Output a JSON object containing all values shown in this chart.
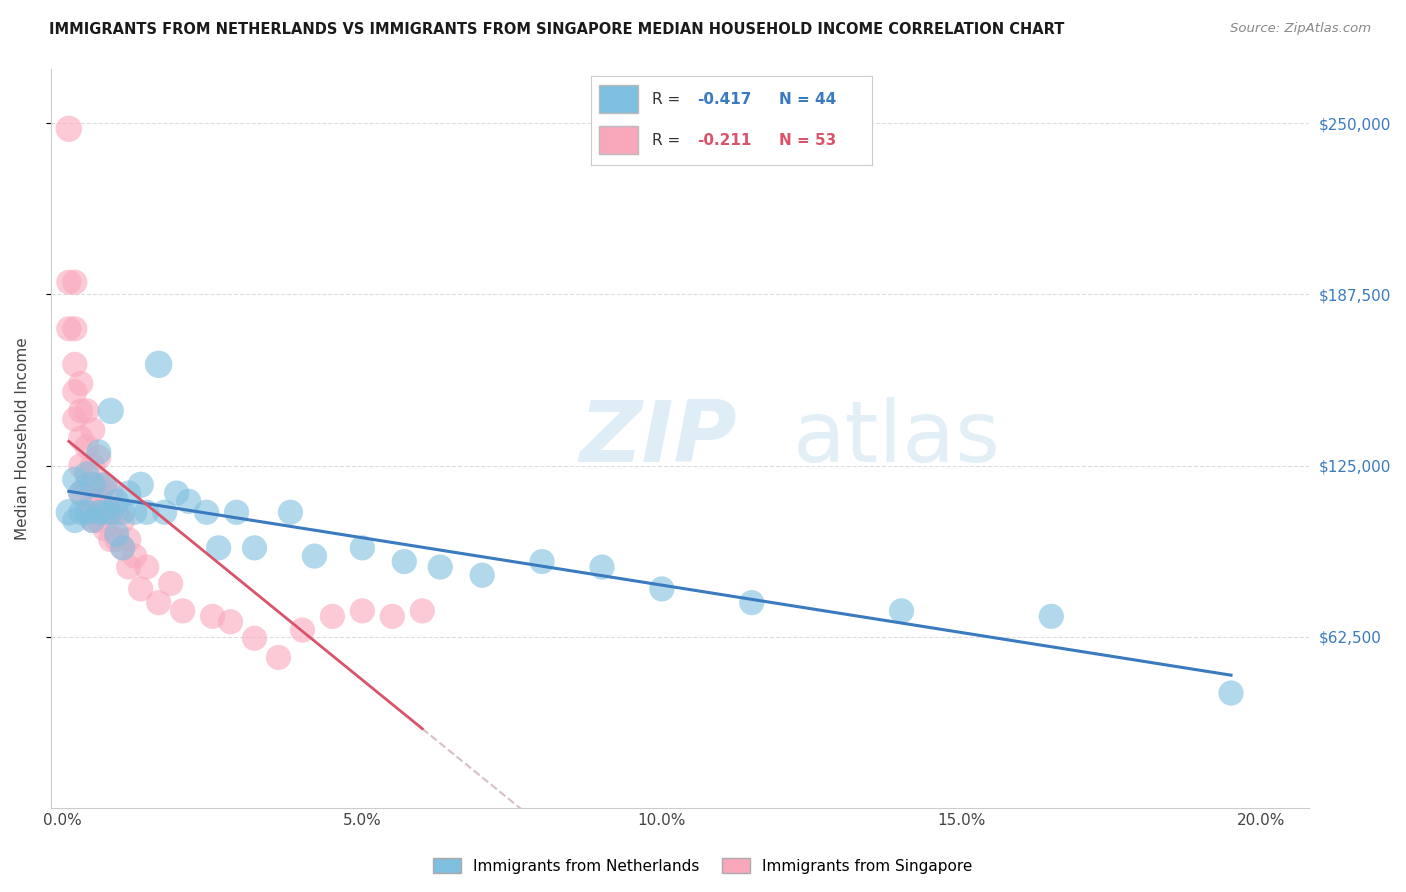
{
  "title": "IMMIGRANTS FROM NETHERLANDS VS IMMIGRANTS FROM SINGAPORE MEDIAN HOUSEHOLD INCOME CORRELATION CHART",
  "source": "Source: ZipAtlas.com",
  "ylabel": "Median Household Income",
  "xlabel_ticks": [
    "0.0%",
    "5.0%",
    "10.0%",
    "15.0%",
    "20.0%"
  ],
  "xlabel_tick_vals": [
    0.0,
    0.05,
    0.1,
    0.15,
    0.2
  ],
  "ytick_labels": [
    "$62,500",
    "$125,000",
    "$187,500",
    "$250,000"
  ],
  "ytick_vals": [
    62500,
    125000,
    187500,
    250000
  ],
  "ylim": [
    0,
    270000
  ],
  "xlim": [
    -0.002,
    0.208
  ],
  "legend_label_blue": "Immigrants from Netherlands",
  "legend_label_pink": "Immigrants from Singapore",
  "color_blue": "#7fbfdf",
  "color_pink": "#f9a8bc",
  "color_blue_line": "#3a7abf",
  "color_pink_line": "#d9536a",
  "color_pink_dashed": "#ccb0b8",
  "watermark_zip": "ZIP",
  "watermark_atlas": "atlas",
  "blue_r": "-0.417",
  "blue_n": "44",
  "pink_r": "-0.211",
  "pink_n": "53",
  "blue_scatter_x": [
    0.001,
    0.002,
    0.002,
    0.003,
    0.003,
    0.004,
    0.004,
    0.005,
    0.005,
    0.006,
    0.006,
    0.007,
    0.007,
    0.008,
    0.008,
    0.009,
    0.009,
    0.01,
    0.01,
    0.011,
    0.012,
    0.013,
    0.014,
    0.016,
    0.017,
    0.019,
    0.021,
    0.024,
    0.026,
    0.029,
    0.032,
    0.038,
    0.042,
    0.05,
    0.057,
    0.063,
    0.07,
    0.08,
    0.09,
    0.1,
    0.115,
    0.14,
    0.165,
    0.195
  ],
  "blue_scatter_y": [
    108000,
    120000,
    105000,
    115000,
    108000,
    122000,
    108000,
    118000,
    105000,
    130000,
    108000,
    118000,
    108000,
    145000,
    108000,
    112000,
    100000,
    108000,
    95000,
    115000,
    108000,
    118000,
    108000,
    162000,
    108000,
    115000,
    112000,
    108000,
    95000,
    108000,
    95000,
    108000,
    92000,
    95000,
    90000,
    88000,
    85000,
    90000,
    88000,
    80000,
    75000,
    72000,
    70000,
    42000
  ],
  "blue_scatter_size": [
    60,
    55,
    55,
    55,
    55,
    55,
    55,
    60,
    55,
    55,
    55,
    55,
    55,
    60,
    55,
    55,
    55,
    55,
    55,
    55,
    55,
    60,
    55,
    65,
    55,
    55,
    55,
    55,
    55,
    55,
    55,
    55,
    55,
    55,
    55,
    55,
    55,
    55,
    55,
    55,
    55,
    55,
    55,
    55
  ],
  "pink_scatter_x": [
    0.001,
    0.001,
    0.001,
    0.002,
    0.002,
    0.002,
    0.002,
    0.002,
    0.003,
    0.003,
    0.003,
    0.003,
    0.003,
    0.004,
    0.004,
    0.004,
    0.004,
    0.005,
    0.005,
    0.005,
    0.005,
    0.005,
    0.006,
    0.006,
    0.006,
    0.006,
    0.007,
    0.007,
    0.007,
    0.008,
    0.008,
    0.008,
    0.009,
    0.009,
    0.01,
    0.01,
    0.011,
    0.011,
    0.012,
    0.013,
    0.014,
    0.016,
    0.018,
    0.02,
    0.025,
    0.028,
    0.032,
    0.036,
    0.04,
    0.045,
    0.05,
    0.055,
    0.06
  ],
  "pink_scatter_y": [
    248000,
    192000,
    175000,
    192000,
    175000,
    162000,
    152000,
    142000,
    155000,
    145000,
    135000,
    125000,
    115000,
    145000,
    132000,
    118000,
    108000,
    138000,
    125000,
    118000,
    112000,
    105000,
    128000,
    118000,
    112000,
    105000,
    118000,
    110000,
    102000,
    115000,
    108000,
    98000,
    108000,
    98000,
    105000,
    95000,
    98000,
    88000,
    92000,
    80000,
    88000,
    75000,
    82000,
    72000,
    70000,
    68000,
    62000,
    55000,
    65000,
    70000,
    72000,
    70000,
    72000
  ],
  "pink_scatter_size": [
    60,
    55,
    55,
    55,
    55,
    55,
    55,
    55,
    55,
    55,
    55,
    55,
    55,
    55,
    55,
    55,
    55,
    55,
    55,
    55,
    55,
    55,
    55,
    55,
    55,
    55,
    55,
    55,
    55,
    55,
    55,
    55,
    55,
    55,
    55,
    55,
    55,
    55,
    55,
    55,
    55,
    55,
    55,
    55,
    55,
    55,
    55,
    55,
    55,
    55,
    55,
    55,
    55
  ],
  "grid_color": "#dddddd",
  "background_color": "#ffffff"
}
